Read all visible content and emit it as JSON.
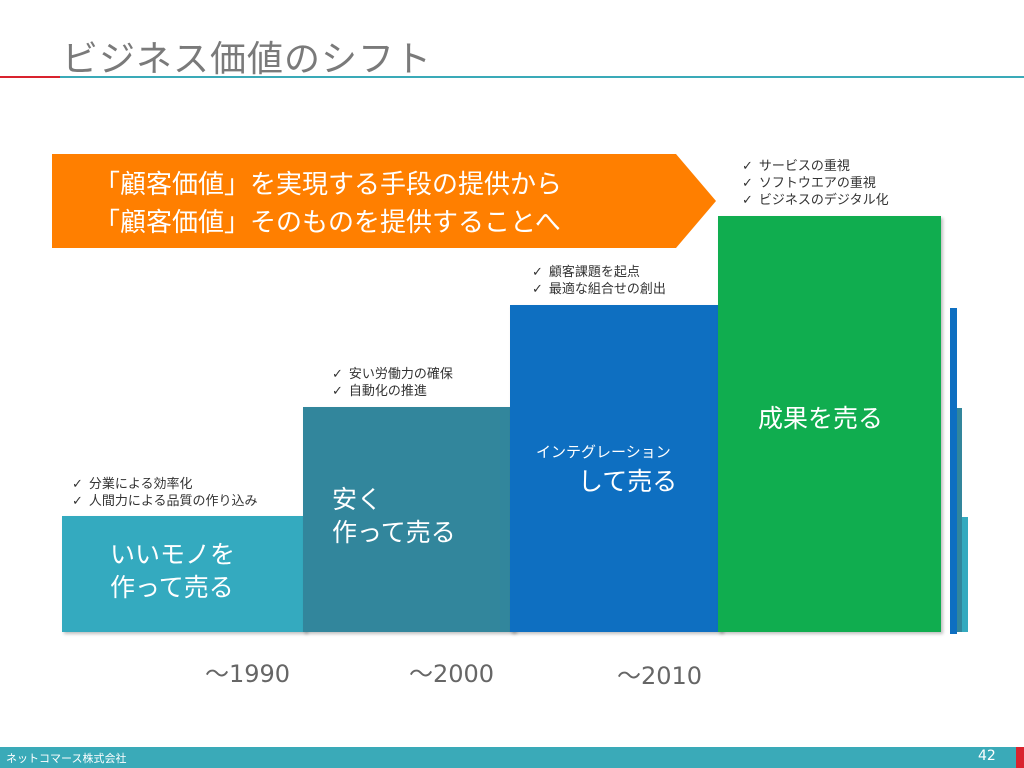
{
  "title": "ビジネス価値のシフト",
  "banner": {
    "line1": "「顧客価値」を実現する手段の提供から",
    "line2": "「顧客価値」そのものを提供することへ"
  },
  "stages": [
    {
      "label_lines": [
        "いいモノを",
        "作って売る"
      ],
      "notes": [
        "分業による効率化",
        "人間力による品質の作り込み"
      ],
      "era": "～1990",
      "color": "#34aabf"
    },
    {
      "label_lines": [
        "安く",
        "作って売る"
      ],
      "notes": [
        "安い労働力の確保",
        "自動化の推進"
      ],
      "era": "～2000",
      "color": "#32869c"
    },
    {
      "label_small": "インテグレーション",
      "label_large": "して売る",
      "notes": [
        "顧客課題を起点",
        "最適な組合せの創出"
      ],
      "era": "～2010",
      "color": "#0e6fc1"
    },
    {
      "label_lines": [
        "成果を売る"
      ],
      "notes": [
        "サービスの重視",
        "ソフトウエアの重視",
        "ビジネスのデジタル化"
      ],
      "color": "#10ad4f"
    }
  ],
  "footer": {
    "company": "ネットコマース株式会社",
    "page": "42"
  },
  "colors": {
    "banner": "#ff7f00",
    "accent_red": "#d9232e",
    "accent_teal": "#3aaab8"
  }
}
